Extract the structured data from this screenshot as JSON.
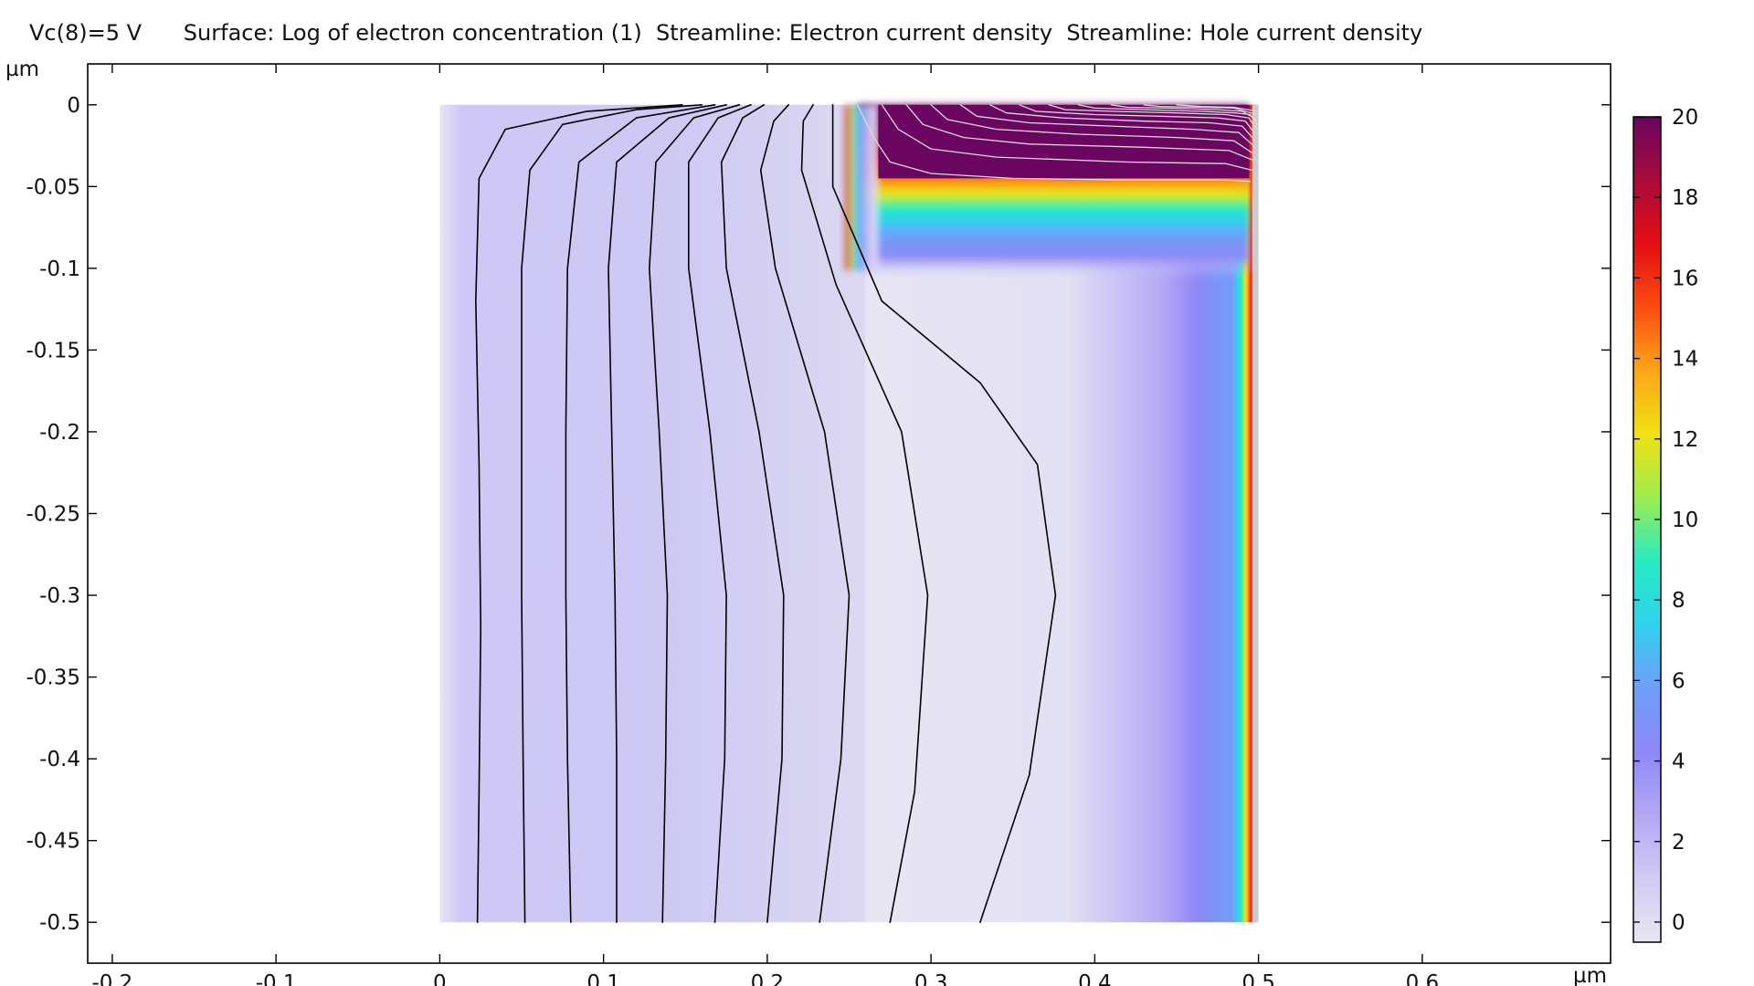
{
  "title": "Vc(8)=5 V      Surface: Log of electron concentration (1)  Streamline: Electron current density  Streamline: Hole current density",
  "chart_data": {
    "type": "heatmap",
    "title": "Vc(8)=5 V      Surface: Log of electron concentration (1)  Streamline: Electron current density  Streamline: Hole current density",
    "xlabel": "µm",
    "ylabel": "µm",
    "xlim": [
      -0.215,
      0.715
    ],
    "ylim": [
      -0.525,
      0.025
    ],
    "x_ticks": [
      -0.2,
      -0.1,
      0,
      0.1,
      0.2,
      0.3,
      0.4,
      0.5,
      0.6
    ],
    "x_tick_labels": [
      "-0.2",
      "-0.1",
      "0",
      "0.1",
      "0.2",
      "0.3",
      "0.4",
      "0.5",
      "0.6"
    ],
    "y_ticks": [
      0,
      -0.05,
      -0.1,
      -0.15,
      -0.2,
      -0.25,
      -0.3,
      -0.35,
      -0.4,
      -0.45,
      -0.5
    ],
    "y_tick_labels": [
      "0",
      "-0.05",
      "-0.1",
      "-0.15",
      "-0.2",
      "-0.25",
      "-0.3",
      "-0.35",
      "-0.4",
      "-0.45",
      "-0.5"
    ],
    "domain": {
      "x": [
        0,
        0.5
      ],
      "y": [
        -0.5,
        0
      ]
    },
    "surface": {
      "quantity": "Log of electron concentration (1)",
      "description": "high (~20) in a surface channel y>-0.08 for x>0.26 and along right edge x>0.49; low (~0-2) elsewhere",
      "junction_x": 0.26,
      "junction_depth": -0.09,
      "right_strip_x": 0.485
    },
    "colorbar": {
      "min": -0.5,
      "max": 20,
      "ticks": [
        0,
        2,
        4,
        6,
        8,
        10,
        12,
        14,
        16,
        18,
        20
      ],
      "tick_labels": [
        "0",
        "2",
        "4",
        "6",
        "8",
        "10",
        "12",
        "14",
        "16",
        "18",
        "20"
      ],
      "colors": [
        "#e8e6f3",
        "#d1cbf4",
        "#b3a7f4",
        "#8e88f7",
        "#6e9ff9",
        "#2fd1ee",
        "#27ecc2",
        "#9ced4f",
        "#f0e214",
        "#fca616",
        "#fb4d10",
        "#e40d12",
        "#a80c3b",
        "#6a0560"
      ]
    },
    "series": [
      {
        "name": "Electron current density",
        "color": "#000000",
        "lines": [
          [
            [
              0.023,
              -0.5
            ],
            [
              0.024,
              -0.42
            ],
            [
              0.025,
              -0.32
            ],
            [
              0.024,
              -0.22
            ],
            [
              0.022,
              -0.12
            ],
            [
              0.024,
              -0.045
            ],
            [
              0.04,
              -0.015
            ],
            [
              0.09,
              -0.004
            ],
            [
              0.148,
              0
            ]
          ],
          [
            [
              0.052,
              -0.5
            ],
            [
              0.051,
              -0.41
            ],
            [
              0.05,
              -0.3
            ],
            [
              0.05,
              -0.2
            ],
            [
              0.05,
              -0.1
            ],
            [
              0.055,
              -0.04
            ],
            [
              0.075,
              -0.012
            ],
            [
              0.12,
              -0.003
            ],
            [
              0.16,
              0
            ]
          ],
          [
            [
              0.08,
              -0.5
            ],
            [
              0.078,
              -0.4
            ],
            [
              0.077,
              -0.3
            ],
            [
              0.077,
              -0.2
            ],
            [
              0.078,
              -0.1
            ],
            [
              0.085,
              -0.035
            ],
            [
              0.12,
              -0.008
            ],
            [
              0.168,
              0
            ]
          ],
          [
            [
              0.108,
              -0.5
            ],
            [
              0.108,
              -0.4
            ],
            [
              0.107,
              -0.3
            ],
            [
              0.105,
              -0.2
            ],
            [
              0.103,
              -0.1
            ],
            [
              0.108,
              -0.035
            ],
            [
              0.14,
              -0.008
            ],
            [
              0.175,
              0
            ]
          ],
          [
            [
              0.136,
              -0.5
            ],
            [
              0.138,
              -0.4
            ],
            [
              0.139,
              -0.3
            ],
            [
              0.134,
              -0.2
            ],
            [
              0.128,
              -0.1
            ],
            [
              0.132,
              -0.035
            ],
            [
              0.155,
              -0.008
            ],
            [
              0.183,
              0
            ]
          ],
          [
            [
              0.168,
              -0.5
            ],
            [
              0.174,
              -0.4
            ],
            [
              0.175,
              -0.3
            ],
            [
              0.165,
              -0.2
            ],
            [
              0.152,
              -0.1
            ],
            [
              0.152,
              -0.035
            ],
            [
              0.17,
              -0.008
            ],
            [
              0.19,
              0
            ]
          ],
          [
            [
              0.2,
              -0.5
            ],
            [
              0.209,
              -0.4
            ],
            [
              0.21,
              -0.3
            ],
            [
              0.195,
              -0.2
            ],
            [
              0.175,
              -0.1
            ],
            [
              0.172,
              -0.035
            ],
            [
              0.185,
              -0.008
            ],
            [
              0.198,
              0
            ]
          ],
          [
            [
              0.232,
              -0.5
            ],
            [
              0.245,
              -0.4
            ],
            [
              0.25,
              -0.3
            ],
            [
              0.235,
              -0.2
            ],
            [
              0.205,
              -0.1
            ],
            [
              0.196,
              -0.04
            ],
            [
              0.204,
              -0.01
            ],
            [
              0.213,
              0
            ]
          ],
          [
            [
              0.275,
              -0.5
            ],
            [
              0.29,
              -0.42
            ],
            [
              0.298,
              -0.3
            ],
            [
              0.282,
              -0.2
            ],
            [
              0.242,
              -0.11
            ],
            [
              0.221,
              -0.04
            ],
            [
              0.222,
              -0.01
            ],
            [
              0.228,
              0
            ]
          ],
          [
            [
              0.33,
              -0.5
            ],
            [
              0.36,
              -0.41
            ],
            [
              0.376,
              -0.3
            ],
            [
              0.365,
              -0.22
            ],
            [
              0.33,
              -0.17
            ],
            [
              0.27,
              -0.12
            ],
            [
              0.24,
              -0.05
            ],
            [
              0.24,
              0
            ]
          ]
        ]
      },
      {
        "name": "Hole current density",
        "color": "#d9d9d9",
        "lines": [
          [
            [
              0.255,
              0
            ],
            [
              0.265,
              -0.02
            ],
            [
              0.275,
              -0.035
            ],
            [
              0.3,
              -0.042
            ],
            [
              0.35,
              -0.045
            ],
            [
              0.42,
              -0.046
            ],
            [
              0.48,
              -0.046
            ],
            [
              0.495,
              -0.047
            ]
          ],
          [
            [
              0.27,
              0
            ],
            [
              0.28,
              -0.015
            ],
            [
              0.3,
              -0.027
            ],
            [
              0.34,
              -0.032
            ],
            [
              0.42,
              -0.035
            ],
            [
              0.48,
              -0.036
            ],
            [
              0.496,
              -0.04
            ]
          ],
          [
            [
              0.285,
              0
            ],
            [
              0.295,
              -0.012
            ],
            [
              0.32,
              -0.02
            ],
            [
              0.36,
              -0.024
            ],
            [
              0.43,
              -0.026
            ],
            [
              0.482,
              -0.028
            ],
            [
              0.497,
              -0.034
            ]
          ],
          [
            [
              0.3,
              0
            ],
            [
              0.31,
              -0.009
            ],
            [
              0.34,
              -0.015
            ],
            [
              0.39,
              -0.018
            ],
            [
              0.45,
              -0.02
            ],
            [
              0.485,
              -0.022
            ],
            [
              0.497,
              -0.03
            ]
          ],
          [
            [
              0.318,
              0
            ],
            [
              0.328,
              -0.007
            ],
            [
              0.36,
              -0.011
            ],
            [
              0.41,
              -0.013
            ],
            [
              0.46,
              -0.015
            ],
            [
              0.488,
              -0.017
            ],
            [
              0.498,
              -0.026
            ]
          ],
          [
            [
              0.336,
              0
            ],
            [
              0.346,
              -0.005
            ],
            [
              0.38,
              -0.008
            ],
            [
              0.43,
              -0.01
            ],
            [
              0.47,
              -0.011
            ],
            [
              0.49,
              -0.013
            ],
            [
              0.498,
              -0.022
            ]
          ],
          [
            [
              0.354,
              0
            ],
            [
              0.364,
              -0.004
            ],
            [
              0.4,
              -0.006
            ],
            [
              0.44,
              -0.007
            ],
            [
              0.475,
              -0.008
            ],
            [
              0.492,
              -0.01
            ],
            [
              0.498,
              -0.018
            ]
          ],
          [
            [
              0.372,
              0
            ],
            [
              0.382,
              -0.003
            ],
            [
              0.41,
              -0.004
            ],
            [
              0.45,
              -0.005
            ],
            [
              0.48,
              -0.006
            ],
            [
              0.494,
              -0.008
            ],
            [
              0.499,
              -0.015
            ]
          ],
          [
            [
              0.39,
              0
            ],
            [
              0.4,
              -0.002
            ],
            [
              0.43,
              -0.003
            ],
            [
              0.465,
              -0.004
            ],
            [
              0.486,
              -0.005
            ],
            [
              0.495,
              -0.006
            ],
            [
              0.499,
              -0.012
            ]
          ],
          [
            [
              0.41,
              0
            ],
            [
              0.42,
              -0.0015
            ],
            [
              0.445,
              -0.002
            ],
            [
              0.475,
              -0.003
            ],
            [
              0.49,
              -0.004
            ],
            [
              0.499,
              -0.009
            ]
          ],
          [
            [
              0.43,
              0
            ],
            [
              0.44,
              -0.001
            ],
            [
              0.465,
              -0.0015
            ],
            [
              0.485,
              -0.002
            ],
            [
              0.499,
              -0.006
            ]
          ],
          [
            [
              0.45,
              0
            ],
            [
              0.465,
              -0.001
            ],
            [
              0.485,
              -0.0015
            ],
            [
              0.499,
              -0.004
            ]
          ]
        ]
      }
    ]
  }
}
